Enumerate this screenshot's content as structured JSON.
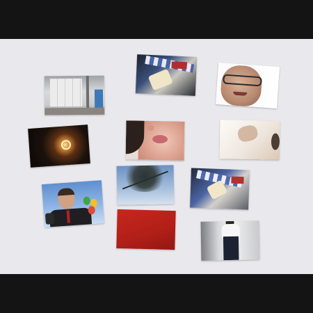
{
  "viewer": {
    "photos": [
      {
        "id": "p1",
        "subject": "garage"
      },
      {
        "id": "p2",
        "subject": "sneakers"
      },
      {
        "id": "p3",
        "subject": "man-glasses"
      },
      {
        "id": "p4",
        "subject": "eclipse"
      },
      {
        "id": "p5",
        "subject": "child-face"
      },
      {
        "id": "p6",
        "subject": "ceiling"
      },
      {
        "id": "p7",
        "subject": "tree-sky"
      },
      {
        "id": "p8",
        "subject": "sneakers"
      },
      {
        "id": "p9",
        "subject": "man-suit-balloons"
      },
      {
        "id": "p10",
        "subject": "red"
      },
      {
        "id": "p11",
        "subject": "man-corridor"
      }
    ]
  },
  "colors": {
    "letterbox": "#141414",
    "stage": "#e9e8ec"
  }
}
